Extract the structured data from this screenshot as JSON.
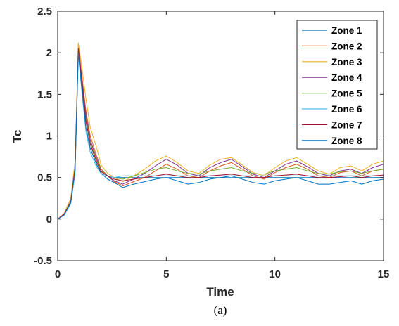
{
  "chart_data": {
    "type": "line",
    "xlabel": "Time",
    "ylabel": "Tc",
    "caption": "(a)",
    "xlim": [
      0,
      15
    ],
    "ylim": [
      -0.5,
      2.5
    ],
    "xticks": [
      "0",
      "5",
      "10",
      "15"
    ],
    "yticks": [
      "-0.5",
      "0",
      "0.5",
      "1",
      "1.5",
      "2",
      "2.5"
    ],
    "grid": false,
    "legend_position": "top-right",
    "x": [
      0,
      0.3,
      0.6,
      0.8,
      0.95,
      1.1,
      1.3,
      1.5,
      1.8,
      2.0,
      2.3,
      2.6,
      3.0,
      3.5,
      4.0,
      4.5,
      5.0,
      5.5,
      6.0,
      6.5,
      7.0,
      7.5,
      8.0,
      8.5,
      9.0,
      9.5,
      10.0,
      10.5,
      11.0,
      11.5,
      12.0,
      12.5,
      13.0,
      13.5,
      14.0,
      14.5,
      15.0
    ],
    "series": [
      {
        "name": "Zone 1",
        "color": "#0072BD",
        "values": [
          0.0,
          0.05,
          0.2,
          0.6,
          2.0,
          1.6,
          1.1,
          0.85,
          0.65,
          0.55,
          0.52,
          0.5,
          0.5,
          0.5,
          0.5,
          0.5,
          0.5,
          0.5,
          0.5,
          0.5,
          0.5,
          0.5,
          0.5,
          0.5,
          0.5,
          0.5,
          0.5,
          0.5,
          0.5,
          0.5,
          0.5,
          0.5,
          0.5,
          0.5,
          0.5,
          0.5,
          0.5
        ]
      },
      {
        "name": "Zone 2",
        "color": "#D95319",
        "values": [
          0.0,
          0.06,
          0.22,
          0.65,
          2.1,
          1.75,
          1.3,
          1.0,
          0.75,
          0.6,
          0.52,
          0.45,
          0.4,
          0.45,
          0.5,
          0.58,
          0.66,
          0.6,
          0.52,
          0.5,
          0.58,
          0.64,
          0.68,
          0.6,
          0.52,
          0.48,
          0.56,
          0.62,
          0.66,
          0.6,
          0.52,
          0.5,
          0.56,
          0.58,
          0.52,
          0.58,
          0.6
        ]
      },
      {
        "name": "Zone 3",
        "color": "#EDB120",
        "values": [
          0.0,
          0.07,
          0.25,
          0.7,
          2.12,
          1.85,
          1.45,
          1.1,
          0.85,
          0.65,
          0.55,
          0.5,
          0.45,
          0.52,
          0.6,
          0.7,
          0.76,
          0.68,
          0.58,
          0.55,
          0.65,
          0.72,
          0.74,
          0.65,
          0.56,
          0.52,
          0.62,
          0.7,
          0.74,
          0.66,
          0.58,
          0.54,
          0.62,
          0.64,
          0.58,
          0.66,
          0.7
        ]
      },
      {
        "name": "Zone 4",
        "color": "#7E2F8E",
        "values": [
          0.0,
          0.06,
          0.21,
          0.62,
          2.05,
          1.7,
          1.25,
          0.95,
          0.72,
          0.58,
          0.52,
          0.46,
          0.42,
          0.48,
          0.55,
          0.64,
          0.72,
          0.65,
          0.55,
          0.52,
          0.62,
          0.68,
          0.72,
          0.63,
          0.54,
          0.5,
          0.58,
          0.66,
          0.7,
          0.63,
          0.55,
          0.52,
          0.58,
          0.6,
          0.55,
          0.62,
          0.66
        ]
      },
      {
        "name": "Zone 5",
        "color": "#77AC30",
        "values": [
          0.0,
          0.05,
          0.19,
          0.58,
          2.02,
          1.65,
          1.2,
          0.92,
          0.7,
          0.58,
          0.52,
          0.5,
          0.48,
          0.52,
          0.56,
          0.6,
          0.62,
          0.58,
          0.55,
          0.54,
          0.58,
          0.6,
          0.62,
          0.58,
          0.55,
          0.54,
          0.58,
          0.6,
          0.62,
          0.58,
          0.55,
          0.54,
          0.57,
          0.58,
          0.55,
          0.58,
          0.6
        ]
      },
      {
        "name": "Zone 6",
        "color": "#4DBEEE",
        "values": [
          0.0,
          0.05,
          0.18,
          0.55,
          1.98,
          1.55,
          1.05,
          0.8,
          0.62,
          0.55,
          0.52,
          0.5,
          0.52,
          0.52,
          0.52,
          0.52,
          0.52,
          0.52,
          0.52,
          0.52,
          0.52,
          0.52,
          0.52,
          0.52,
          0.52,
          0.52,
          0.52,
          0.52,
          0.52,
          0.52,
          0.52,
          0.52,
          0.52,
          0.52,
          0.52,
          0.52,
          0.52
        ]
      },
      {
        "name": "Zone 7",
        "color": "#A2142F",
        "values": [
          0.0,
          0.06,
          0.2,
          0.6,
          2.03,
          1.68,
          1.18,
          0.9,
          0.68,
          0.57,
          0.52,
          0.48,
          0.46,
          0.48,
          0.5,
          0.52,
          0.54,
          0.52,
          0.5,
          0.5,
          0.52,
          0.53,
          0.54,
          0.52,
          0.5,
          0.5,
          0.52,
          0.53,
          0.54,
          0.52,
          0.5,
          0.5,
          0.51,
          0.52,
          0.5,
          0.52,
          0.53
        ]
      },
      {
        "name": "Zone 8",
        "color": "#0072BD",
        "values": [
          0.0,
          0.05,
          0.2,
          0.58,
          2.0,
          1.6,
          1.1,
          0.85,
          0.65,
          0.55,
          0.48,
          0.44,
          0.38,
          0.42,
          0.45,
          0.48,
          0.5,
          0.46,
          0.42,
          0.44,
          0.48,
          0.5,
          0.52,
          0.48,
          0.44,
          0.42,
          0.46,
          0.48,
          0.5,
          0.46,
          0.42,
          0.42,
          0.44,
          0.46,
          0.42,
          0.46,
          0.48
        ]
      }
    ]
  }
}
